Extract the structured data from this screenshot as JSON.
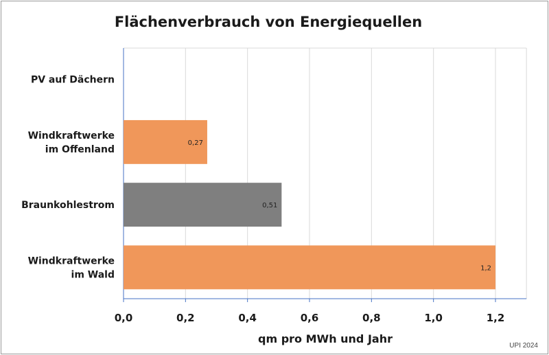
{
  "chart_data": {
    "type": "bar",
    "orientation": "horizontal",
    "title": "Flächenverbrauch von Energiequellen",
    "xlabel": "qm pro MWh und Jahr",
    "ylabel": "",
    "xlim": [
      0,
      1.3
    ],
    "ticks": [
      0,
      0.2,
      0.4,
      0.6,
      0.8,
      1.0,
      1.2
    ],
    "tick_labels": [
      "0,0",
      "0,2",
      "0,4",
      "0,6",
      "0,8",
      "1,0",
      "1,2"
    ],
    "grid": true,
    "categories": [
      [
        "PV auf Dächern"
      ],
      [
        "Windkraftwerke",
        "im Offenland"
      ],
      [
        "Braunkohlestrom"
      ],
      [
        "Windkraftwerke",
        "im Wald"
      ]
    ],
    "values": [
      0,
      0.27,
      0.51,
      1.2
    ],
    "data_labels": [
      "",
      "0,27",
      "0,51",
      "1,2"
    ],
    "colors": [
      "#f0975a",
      "#f0975a",
      "#7f7f7f",
      "#f0975a"
    ]
  },
  "source_note": "UPI 2024"
}
